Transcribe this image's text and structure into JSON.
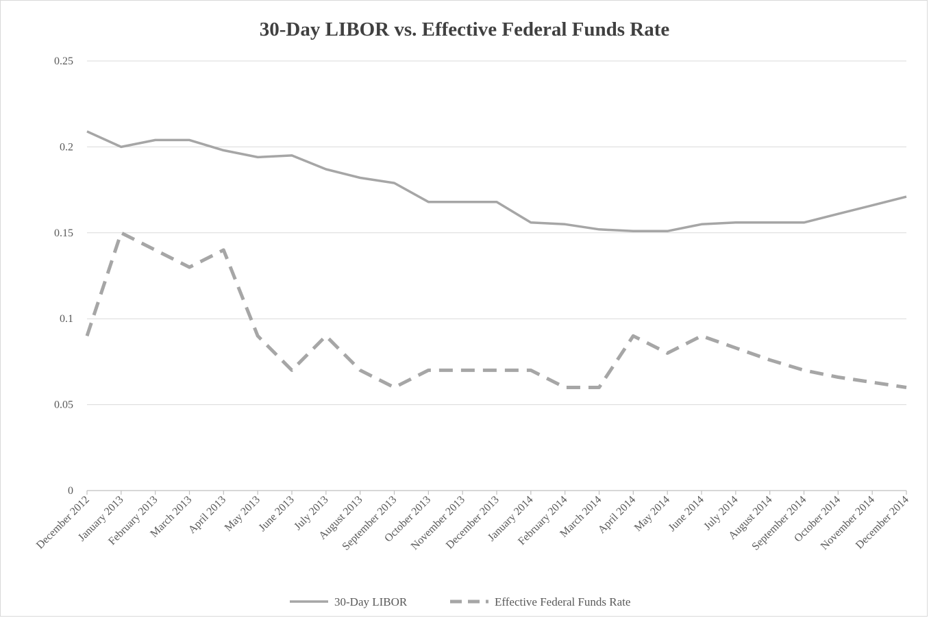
{
  "chart_data": {
    "type": "line",
    "title": "30-Day LIBOR vs. Effective Federal Funds Rate",
    "xlabel": "",
    "ylabel": "",
    "ylim": [
      0,
      0.25
    ],
    "yticks": [
      "0",
      "0.05",
      "0.1",
      "0.15",
      "0.2",
      "0.25"
    ],
    "grid": "horizontal",
    "legend_position": "bottom",
    "categories": [
      "December 2012",
      "January 2013",
      "February 2013",
      "March 2013",
      "April 2013",
      "May 2013",
      "June 2013",
      "July 2013",
      "August 2013",
      "September 2013",
      "October 2013",
      "November 2013",
      "December 2013",
      "January 2014",
      "February 2014",
      "March 2014",
      "April 2014",
      "May 2014",
      "June 2014",
      "July 2014",
      "August 2014",
      "September 2014",
      "October 2014",
      "November 2014",
      "December 2014"
    ],
    "series": [
      {
        "name": "30-Day LIBOR",
        "style": "solid",
        "color": "#a6a6a6",
        "values": [
          0.209,
          0.2,
          0.204,
          0.204,
          0.198,
          0.194,
          0.195,
          0.187,
          0.182,
          0.179,
          0.168,
          0.168,
          0.168,
          0.156,
          0.155,
          0.152,
          0.151,
          0.151,
          0.155,
          0.156,
          0.156,
          0.156,
          0.161,
          0.166,
          0.171
        ]
      },
      {
        "name": "Effective Federal Funds Rate",
        "style": "dashed",
        "color": "#a6a6a6",
        "values": [
          0.09,
          0.15,
          0.14,
          0.13,
          0.14,
          0.09,
          0.07,
          0.09,
          0.07,
          0.06,
          0.07,
          0.07,
          0.07,
          0.07,
          0.06,
          0.06,
          0.09,
          0.08,
          0.09,
          0.083,
          0.076,
          0.07,
          0.066,
          0.063,
          0.06
        ]
      }
    ]
  }
}
